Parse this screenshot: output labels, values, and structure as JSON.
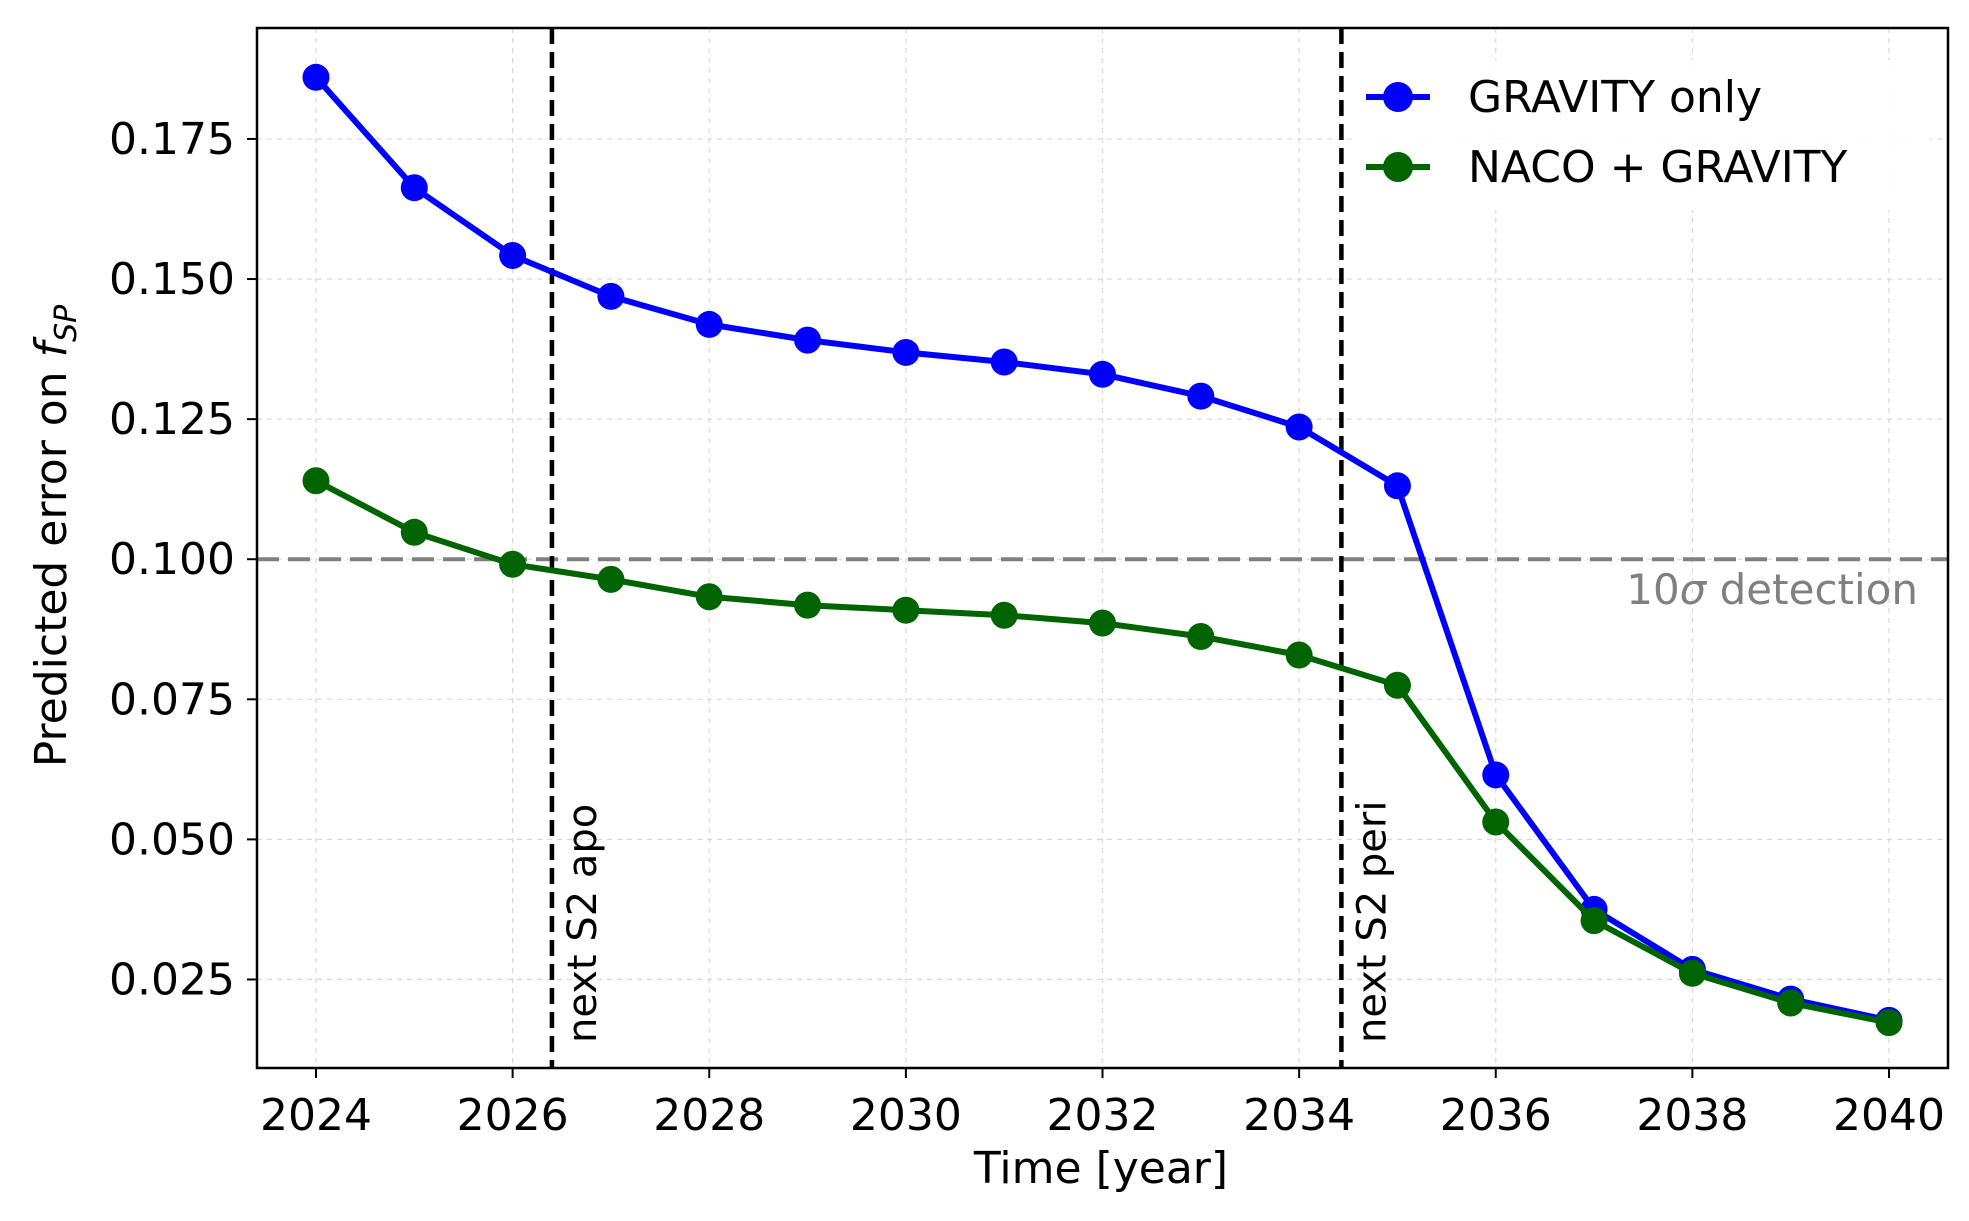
{
  "chart_data": {
    "type": "line",
    "xlabel": "Time [year]",
    "ylabel": "Predicted error on ",
    "ylabel_symbol": "f",
    "ylabel_subscript": "SP",
    "xlim": [
      2023.4,
      2040.6
    ],
    "ylim": [
      0.0092,
      0.1948
    ],
    "x_ticks": [
      2024,
      2026,
      2028,
      2030,
      2032,
      2034,
      2036,
      2038,
      2040
    ],
    "x_tick_labels": [
      "2024",
      "2026",
      "2028",
      "2030",
      "2032",
      "2034",
      "2036",
      "2038",
      "2040"
    ],
    "y_ticks": [
      0.025,
      0.05,
      0.075,
      0.1,
      0.125,
      0.15,
      0.175
    ],
    "y_tick_labels": [
      "0.025",
      "0.050",
      "0.075",
      "0.100",
      "0.125",
      "0.150",
      "0.175"
    ],
    "grid": true,
    "legend_position": "top-right",
    "x": [
      2024,
      2025,
      2026,
      2027,
      2028,
      2029,
      2030,
      2031,
      2032,
      2033,
      2034,
      2035,
      2036,
      2037,
      2038,
      2039,
      2040
    ],
    "series": [
      {
        "name": "GRAVITY only",
        "color": "#0000ff",
        "values": [
          0.186,
          0.1663,
          0.1542,
          0.1469,
          0.1419,
          0.1391,
          0.1369,
          0.1352,
          0.133,
          0.1291,
          0.1236,
          0.1131,
          0.0615,
          0.0375,
          0.0268,
          0.0215,
          0.0177
        ]
      },
      {
        "name": "NACO + GRAVITY",
        "color": "#006400",
        "values": [
          0.114,
          0.1048,
          0.0991,
          0.0964,
          0.0933,
          0.0918,
          0.0909,
          0.09,
          0.0886,
          0.0862,
          0.0829,
          0.0775,
          0.0531,
          0.0355,
          0.0261,
          0.0208,
          0.0173
        ]
      }
    ],
    "vertical_lines": [
      {
        "x": 2026.4,
        "label": "next S2 apo",
        "color": "#000000"
      },
      {
        "x": 2034.43,
        "label": "next S2 peri",
        "color": "#000000"
      }
    ],
    "horizontal_lines": [
      {
        "y": 0.1,
        "label_prefix": "10",
        "label_symbol": "σ",
        "label_suffix": " detection",
        "color": "#808080"
      }
    ]
  }
}
